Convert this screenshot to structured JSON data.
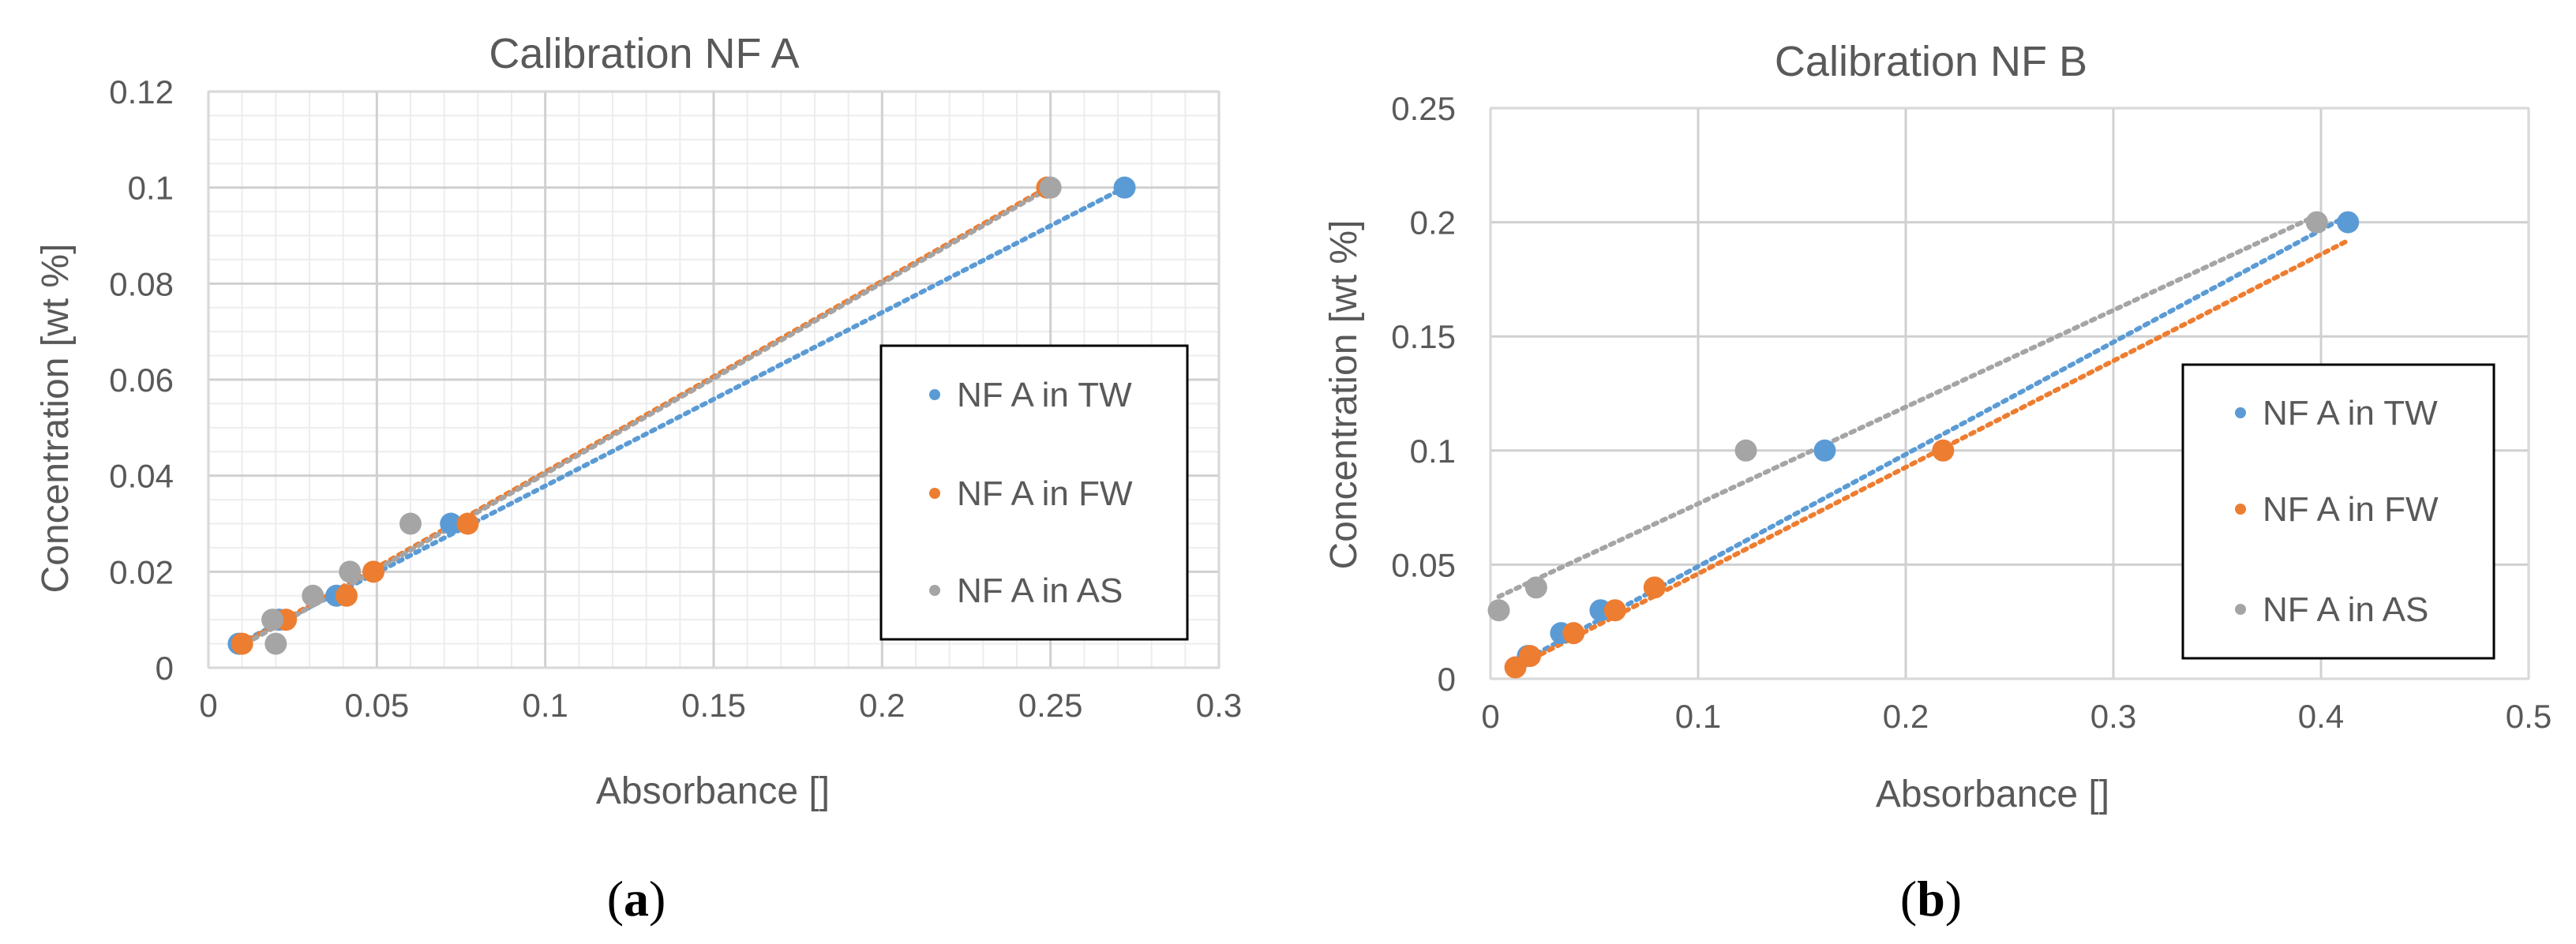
{
  "chart_data": [
    {
      "type": "scatter",
      "title": "Calibration NF A",
      "xlabel": "Absorbance []",
      "ylabel": "Concentration [wt %]",
      "xlim": [
        0,
        0.3
      ],
      "ylim": [
        0,
        0.12
      ],
      "x_ticks": [
        "0",
        "0.05",
        "0.1",
        "0.15",
        "0.2",
        "0.25",
        "0.3"
      ],
      "y_ticks": [
        "0",
        "0.02",
        "0.04",
        "0.06",
        "0.08",
        "0.1",
        "0.12"
      ],
      "x_tick_values": [
        0,
        0.05,
        0.1,
        0.15,
        0.2,
        0.25,
        0.3
      ],
      "y_tick_values": [
        0,
        0.02,
        0.04,
        0.06,
        0.08,
        0.1,
        0.12
      ],
      "x_minor_step": 0.01,
      "y_minor_step": 0.005,
      "grid": true,
      "legend_position": "right",
      "panel_label": "(a)",
      "panel_letter": "a",
      "series": [
        {
          "name": "NF A in TW",
          "color": "#5B9BD5",
          "x": [
            0.009,
            0.021,
            0.038,
            0.072,
            0.272
          ],
          "y": [
            0.005,
            0.01,
            0.015,
            0.03,
            0.1
          ],
          "trendline": {
            "x": [
              0.009,
              0.272
            ],
            "y": [
              0.005,
              0.1
            ]
          }
        },
        {
          "name": "NF A in FW",
          "color": "#ED7D31",
          "x": [
            0.01,
            0.023,
            0.041,
            0.049,
            0.077,
            0.249
          ],
          "y": [
            0.005,
            0.01,
            0.015,
            0.02,
            0.03,
            0.1
          ],
          "trendline": {
            "x": [
              0.01,
              0.249
            ],
            "y": [
              0.005,
              0.1
            ]
          }
        },
        {
          "name": "NF A in AS",
          "color": "#A5A5A5",
          "x": [
            0.02,
            0.019,
            0.031,
            0.042,
            0.06,
            0.25
          ],
          "y": [
            0.005,
            0.01,
            0.015,
            0.02,
            0.03,
            0.1
          ],
          "trendline": {
            "x": [
              0.011,
              0.25
            ],
            "y": [
              0.005,
              0.1
            ]
          }
        }
      ]
    },
    {
      "type": "scatter",
      "title": "Calibration NF B",
      "xlabel": "Absorbance []",
      "ylabel": "Concentration [wt %]",
      "xlim": [
        0,
        0.5
      ],
      "ylim": [
        0,
        0.25
      ],
      "x_ticks": [
        "0",
        "0.1",
        "0.2",
        "0.3",
        "0.4",
        "0.5"
      ],
      "y_ticks": [
        "0",
        "0.05",
        "0.1",
        "0.15",
        "0.2",
        "0.25"
      ],
      "x_tick_values": [
        0,
        0.1,
        0.2,
        0.3,
        0.4,
        0.5
      ],
      "y_tick_values": [
        0,
        0.05,
        0.1,
        0.15,
        0.2,
        0.25
      ],
      "grid": true,
      "legend_position": "right",
      "panel_label": "(b)",
      "panel_letter": "b",
      "series": [
        {
          "name": "NF A in TW",
          "color": "#5B9BD5",
          "x": [
            0.018,
            0.034,
            0.053,
            0.161,
            0.413
          ],
          "y": [
            0.01,
            0.02,
            0.03,
            0.1,
            0.2
          ],
          "trendline": {
            "x": [
              0.01,
              0.413
            ],
            "y": [
              0.005,
              0.203
            ]
          }
        },
        {
          "name": "NF A in FW",
          "color": "#ED7D31",
          "x": [
            0.012,
            0.019,
            0.04,
            0.06,
            0.079,
            0.218
          ],
          "y": [
            0.005,
            0.01,
            0.02,
            0.03,
            0.04,
            0.1
          ],
          "trendline": {
            "x": [
              0.012,
              0.413
            ],
            "y": [
              0.005,
              0.192
            ]
          }
        },
        {
          "name": "NF A in AS",
          "color": "#A5A5A5",
          "x": [
            0.004,
            0.022,
            0.123,
            0.398
          ],
          "y": [
            0.03,
            0.04,
            0.1,
            0.2
          ],
          "trendline": {
            "x": [
              0.004,
              0.398
            ],
            "y": [
              0.036,
              0.203
            ]
          }
        }
      ]
    }
  ]
}
